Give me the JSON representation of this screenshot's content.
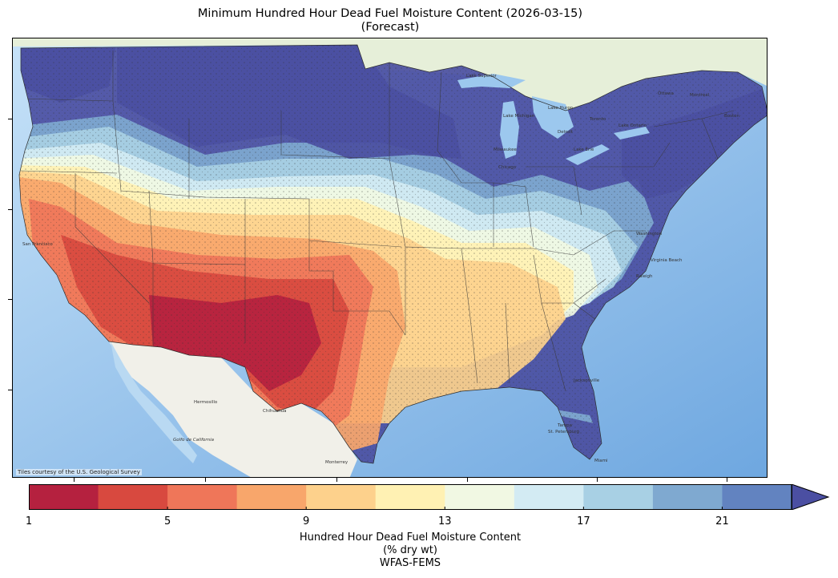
{
  "title": {
    "line1": "Minimum Hundred Hour Dead Fuel Moisture Content (2026-03-15)",
    "line2": "(Forecast)"
  },
  "map": {
    "attribution": "Tiles courtesy of the U.S. Geological Survey",
    "colors": {
      "ocean": "#a9cff0",
      "land_basemap": "#eef0e6",
      "great_lakes": "#9cc8ee",
      "state_border": "#3a3a3a"
    },
    "place_labels": [
      "Lake Superior",
      "Lake Michigan",
      "Lake Huron",
      "Lake Erie",
      "Lake Ontario",
      "Ottawa",
      "Montréal",
      "Toronto",
      "Milwaukee",
      "Chicago",
      "Detroit",
      "Boston",
      "Washington",
      "Raleigh",
      "Virginia Beach",
      "Jacksonville",
      "Tampa",
      "St. Petersburg",
      "Miami",
      "Hermosillo",
      "Chihuahua",
      "Monterrey",
      "San Francisco",
      "Golfo de California"
    ]
  },
  "colorbar": {
    "label_line1": "Hundred Hour Dead Fuel Moisture Content",
    "label_line2": "(% dry wt)",
    "label_line3": "WFAS-FEMS",
    "min": 1,
    "max": 23,
    "extend": "max",
    "boundaries": [
      1,
      3,
      5,
      7,
      9,
      11,
      13,
      15,
      17,
      19,
      21,
      23
    ],
    "colors": [
      "#b5213f",
      "#d8493f",
      "#ef7659",
      "#f8a66b",
      "#fdd18c",
      "#fff1b3",
      "#f1f8e3",
      "#d3ebf3",
      "#a8d0e4",
      "#7fa9d0",
      "#6283c0",
      "#4b4fa2"
    ],
    "tick_labels": [
      "1",
      "5",
      "9",
      "13",
      "17",
      "21"
    ]
  }
}
